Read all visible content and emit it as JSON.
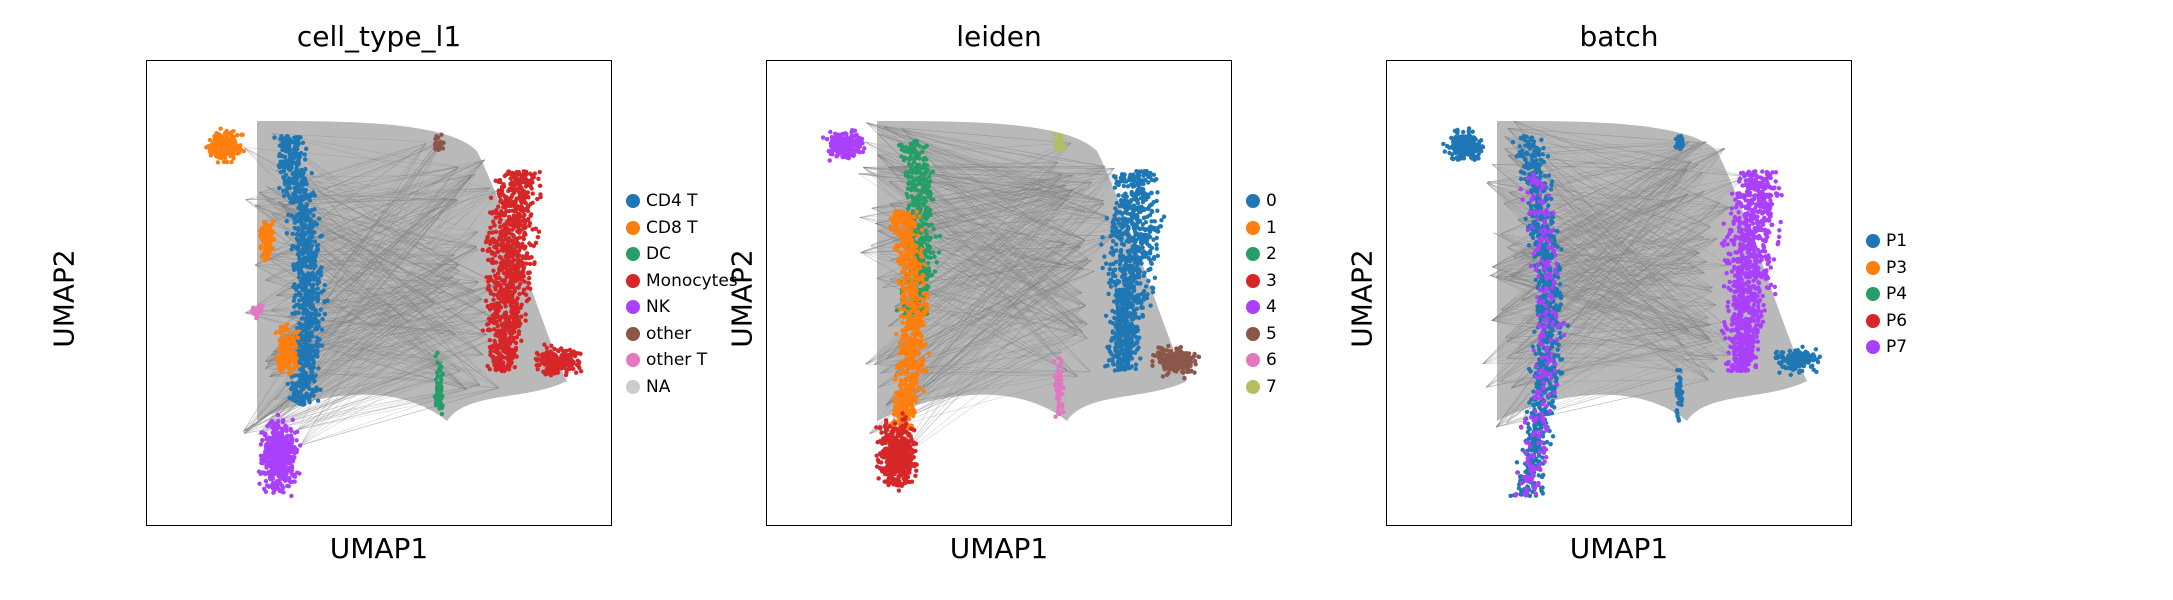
{
  "chart_data": [
    {
      "type": "scatter",
      "title": "cell_type_l1",
      "xlabel": "UMAP1",
      "ylabel": "UMAP2",
      "legend_position": "right",
      "legend": [
        {
          "name": "CD4 T",
          "color": "#1f77b4"
        },
        {
          "name": "CD8 T",
          "color": "#ff7f0e"
        },
        {
          "name": "DC",
          "color": "#279e68"
        },
        {
          "name": "Monocytes",
          "color": "#d62728"
        },
        {
          "name": "NK",
          "color": "#aa40fc"
        },
        {
          "name": "other",
          "color": "#8c564b"
        },
        {
          "name": "other T",
          "color": "#e377c2"
        },
        {
          "name": "NA",
          "color": "#cccccc"
        }
      ]
    },
    {
      "type": "scatter",
      "title": "leiden",
      "xlabel": "UMAP1",
      "ylabel": "UMAP2",
      "legend_position": "right",
      "legend": [
        {
          "name": "0",
          "color": "#1f77b4"
        },
        {
          "name": "1",
          "color": "#ff7f0e"
        },
        {
          "name": "2",
          "color": "#279e68"
        },
        {
          "name": "3",
          "color": "#d62728"
        },
        {
          "name": "4",
          "color": "#aa40fc"
        },
        {
          "name": "5",
          "color": "#8c564b"
        },
        {
          "name": "6",
          "color": "#e377c2"
        },
        {
          "name": "7",
          "color": "#b5bd61"
        }
      ]
    },
    {
      "type": "scatter",
      "title": "batch",
      "xlabel": "UMAP1",
      "ylabel": "UMAP2",
      "legend_position": "right",
      "legend": [
        {
          "name": "P1",
          "color": "#1f77b4"
        },
        {
          "name": "P3",
          "color": "#ff7f0e"
        },
        {
          "name": "P4",
          "color": "#279e68"
        },
        {
          "name": "P6",
          "color": "#d62728"
        },
        {
          "name": "P7",
          "color": "#aa40fc"
        }
      ]
    }
  ],
  "colors": {
    "edges": "#808080"
  }
}
